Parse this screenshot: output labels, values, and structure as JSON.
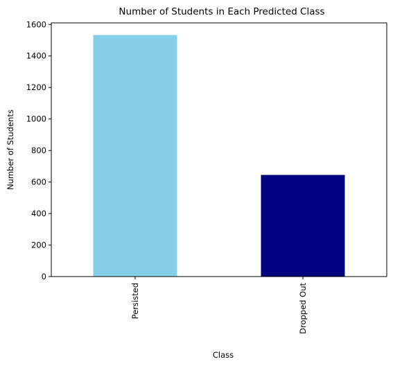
{
  "chart_data": {
    "type": "bar",
    "title": "Number of Students in Each Predicted Class",
    "xlabel": "Class",
    "ylabel": "Number of Students",
    "categories": [
      "Persisted",
      "Dropped Out"
    ],
    "values": [
      1533,
      645
    ],
    "colors": [
      "#87ceeb",
      "#000080"
    ],
    "ylim": [
      0,
      1610
    ],
    "yticks": [
      0,
      200,
      400,
      600,
      800,
      1000,
      1200,
      1400,
      1600
    ],
    "grid": false,
    "legend": "none"
  }
}
